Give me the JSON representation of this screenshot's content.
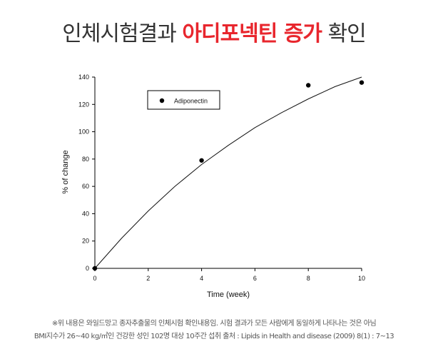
{
  "headline": {
    "prefix": "인체시험결과",
    "highlight": "아디포넥틴 증가",
    "suffix": "확인"
  },
  "colors": {
    "accent": "#e8262d",
    "text": "#333333"
  },
  "chart_data": {
    "type": "scatter",
    "xlabel": "Time (week)",
    "ylabel": "% of change",
    "xlim": [
      0,
      10
    ],
    "ylim": [
      0,
      140
    ],
    "xticks": [
      0,
      2,
      4,
      6,
      8,
      10
    ],
    "yticks": [
      0,
      20,
      40,
      60,
      80,
      100,
      120,
      140
    ],
    "grid": false,
    "legend_position": "top-left",
    "series": [
      {
        "name": "Adiponectin",
        "marker": "filled-circle",
        "points": [
          {
            "x": 0,
            "y": 0
          },
          {
            "x": 4,
            "y": 79
          },
          {
            "x": 8,
            "y": 134
          },
          {
            "x": 10,
            "y": 136
          }
        ]
      }
    ],
    "fit_curve": {
      "type": "exponential-rise",
      "points": [
        {
          "x": 0,
          "y": 0
        },
        {
          "x": 1,
          "y": 22
        },
        {
          "x": 2,
          "y": 42
        },
        {
          "x": 3,
          "y": 60
        },
        {
          "x": 4,
          "y": 76
        },
        {
          "x": 5,
          "y": 90
        },
        {
          "x": 6,
          "y": 103
        },
        {
          "x": 7,
          "y": 114
        },
        {
          "x": 8,
          "y": 124
        },
        {
          "x": 9,
          "y": 133
        },
        {
          "x": 10,
          "y": 140
        }
      ]
    }
  },
  "footnote": {
    "line1": "※위 내용은 와일드망고 종자추출물의 인체시험 확인내용임. 시험 결과가 모든 사람에게 동일하게 나타나는 것은 아님",
    "line2": "BMI지수가 26~40 kg/㎡인 건강한 성인 102명 대상 10주간 섭취  출처 : Lipids in Health and disease (2009) 8(1) : 7~13"
  }
}
